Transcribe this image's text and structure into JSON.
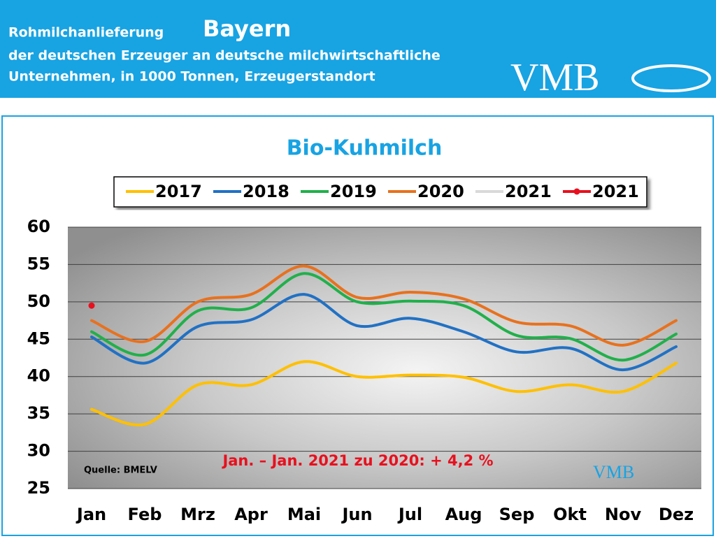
{
  "header": {
    "title": "Rohmilchanlieferung",
    "region": "Bayern",
    "line2": "der deutschen Erzeuger an deutsche milchwirtschaftliche",
    "line3": "Unternehmen, in 1000 Tonnen, Erzeugerstandort",
    "logo": "VMB"
  },
  "chart_data": {
    "type": "line",
    "title": "Bio-Kuhmilch",
    "categories": [
      "Jan",
      "Feb",
      "Mrz",
      "Apr",
      "Mai",
      "Jun",
      "Jul",
      "Aug",
      "Sep",
      "Okt",
      "Nov",
      "Dez"
    ],
    "series": [
      {
        "name": "2017",
        "color": "#ffc000",
        "values": [
          35.6,
          33.6,
          38.9,
          38.9,
          42.0,
          40.0,
          40.2,
          39.9,
          38.0,
          38.9,
          38.0,
          41.8
        ]
      },
      {
        "name": "2018",
        "color": "#2171c4",
        "values": [
          45.3,
          41.8,
          46.7,
          47.6,
          51.0,
          46.8,
          47.8,
          46.0,
          43.3,
          43.8,
          40.9,
          44.0
        ]
      },
      {
        "name": "2019",
        "color": "#21b04b",
        "values": [
          46.0,
          42.9,
          48.8,
          49.2,
          53.8,
          50.0,
          50.1,
          49.5,
          45.5,
          45.1,
          42.2,
          45.7
        ]
      },
      {
        "name": "2020",
        "color": "#e8711e",
        "values": [
          47.5,
          44.7,
          50.0,
          51.0,
          54.8,
          50.6,
          51.3,
          50.4,
          47.3,
          46.8,
          44.2,
          47.5
        ]
      },
      {
        "name": "2021",
        "color": "#d9d9d9",
        "values": [
          49.5,
          null,
          null,
          null,
          null,
          null,
          null,
          null,
          null,
          null,
          null,
          null
        ]
      },
      {
        "name": "2021",
        "color": "#e8101e",
        "marker": true,
        "values": [
          49.5,
          null,
          null,
          null,
          null,
          null,
          null,
          null,
          null,
          null,
          null,
          null
        ]
      }
    ],
    "ylim": [
      25,
      60
    ],
    "yticks": [
      25,
      30,
      35,
      40,
      45,
      50,
      55,
      60
    ],
    "grid": true,
    "annotation": "Jan. – Jan. 2021 zu 2020: + 4,2 %",
    "source": "Quelle: BMELV",
    "logo": "VMB"
  }
}
